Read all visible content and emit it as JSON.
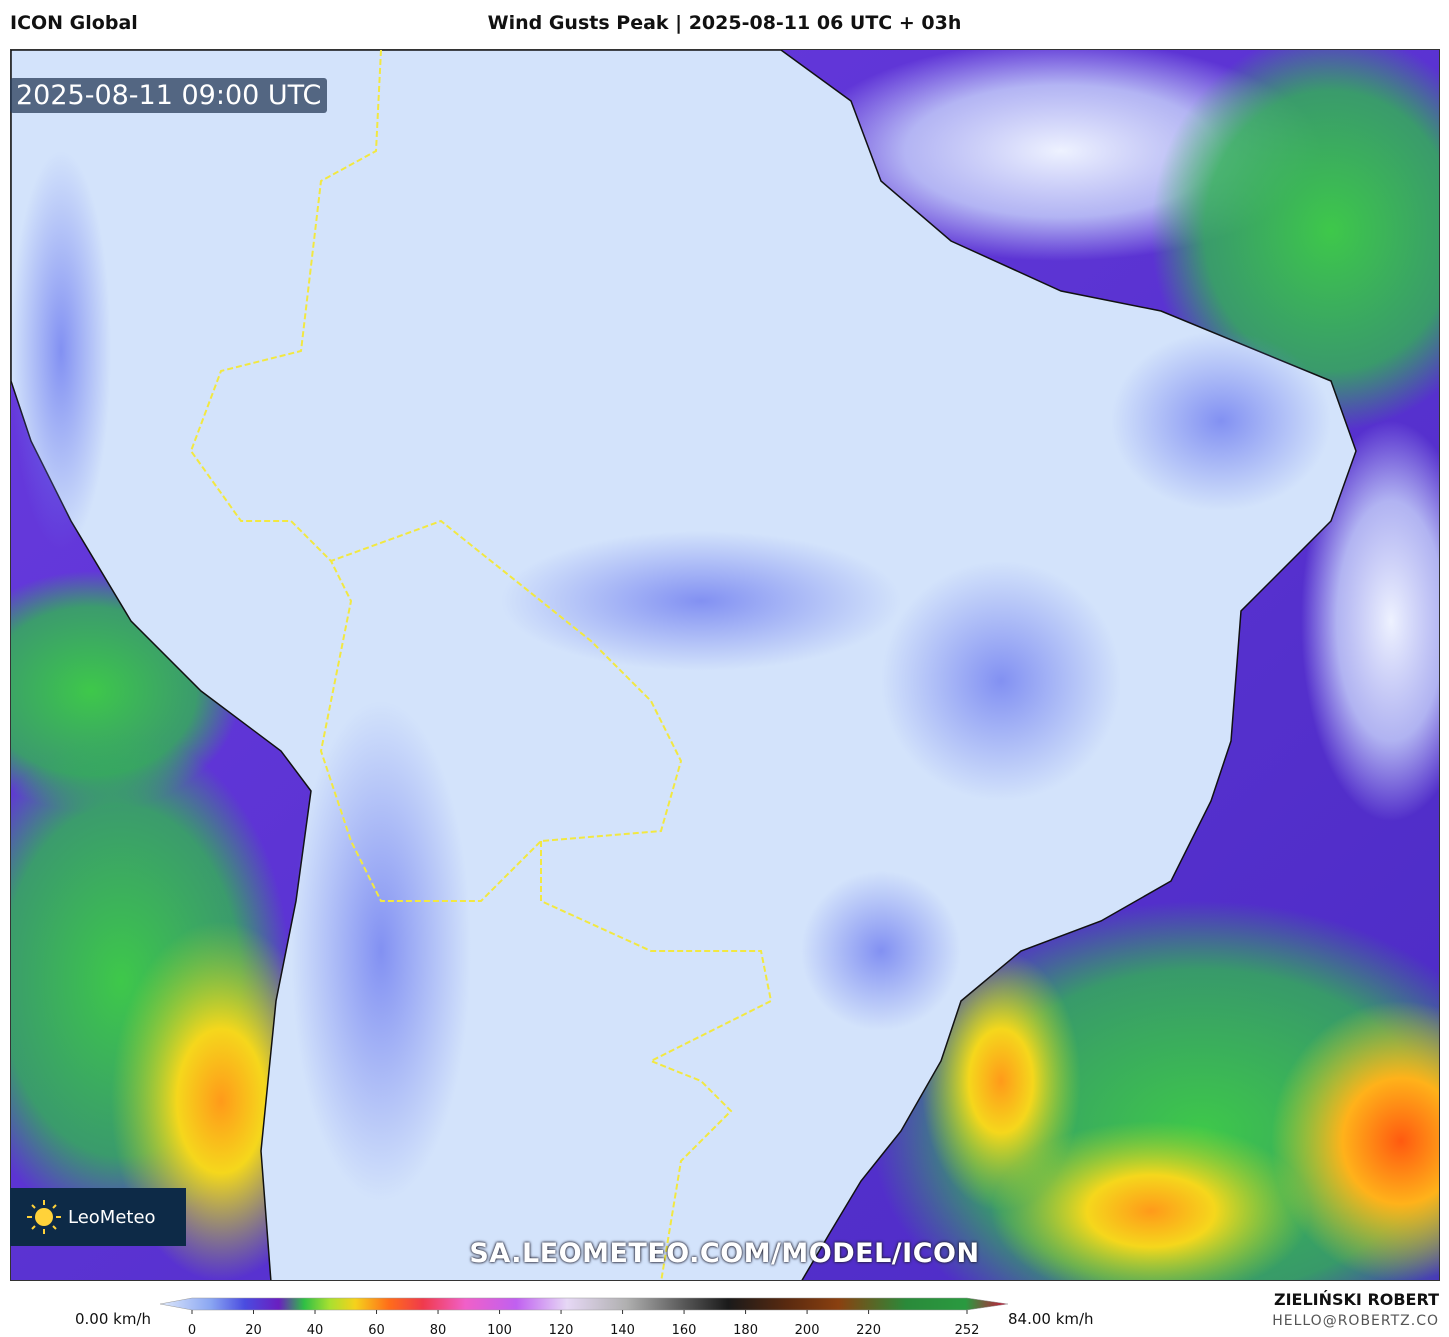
{
  "header": {
    "model": "ICON Global",
    "title": "Wind Gusts Peak | 2025-08-11 06 UTC + 03h"
  },
  "map": {
    "timestamp": "2025-08-11 09:00 UTC",
    "logo": "LeoMeteo",
    "url": "SA.LEOMETEO.COM/MODEL/ICON"
  },
  "colorbar": {
    "min_label": "0.00 km/h",
    "max_label": "84.00 km/h",
    "ticks": [
      0,
      20,
      40,
      60,
      80,
      100,
      120,
      140,
      160,
      180,
      200,
      220,
      252
    ]
  },
  "footer": {
    "author": "ZIELIŃSKI ROBERT",
    "email": "HELLO@ROBERTZ.CO"
  }
}
